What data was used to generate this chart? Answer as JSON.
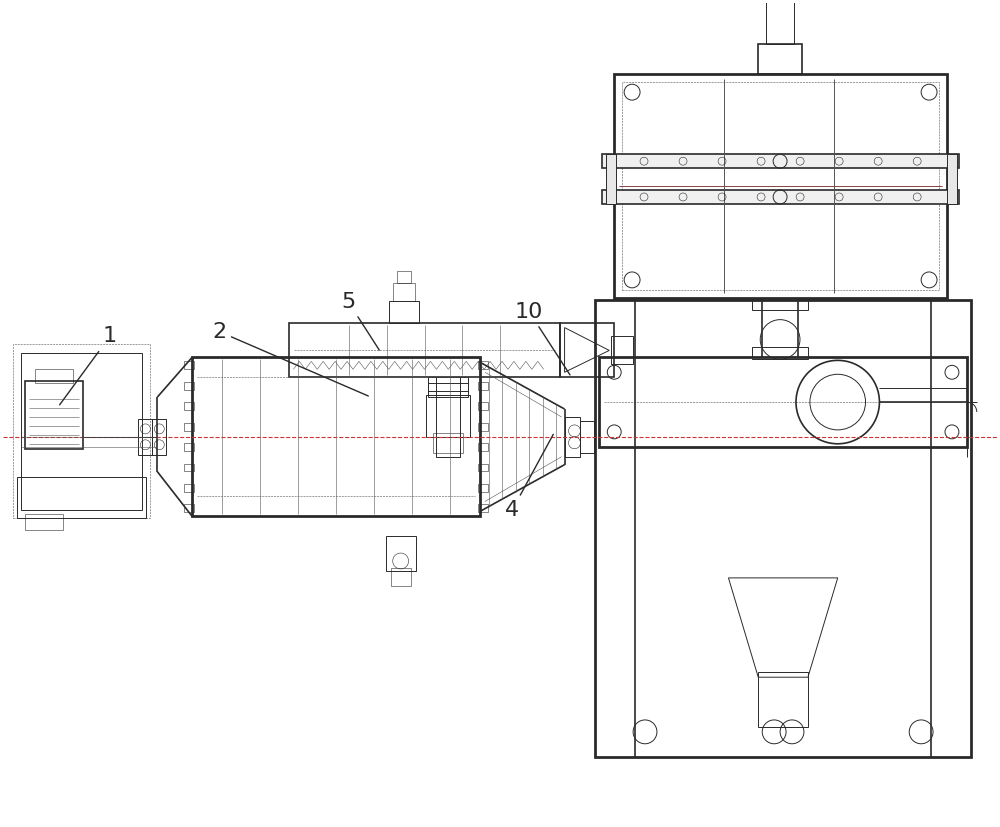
{
  "bg_color": "#ffffff",
  "lc": "#2a2a2a",
  "dc": "#cc3333",
  "tc": "#555555",
  "lw_thick": 2.0,
  "lw_med": 1.2,
  "lw_thin": 0.7,
  "lw_vthin": 0.4,
  "figsize": [
    10.0,
    8.27
  ],
  "dpi": 100,
  "label_fontsize": 16
}
